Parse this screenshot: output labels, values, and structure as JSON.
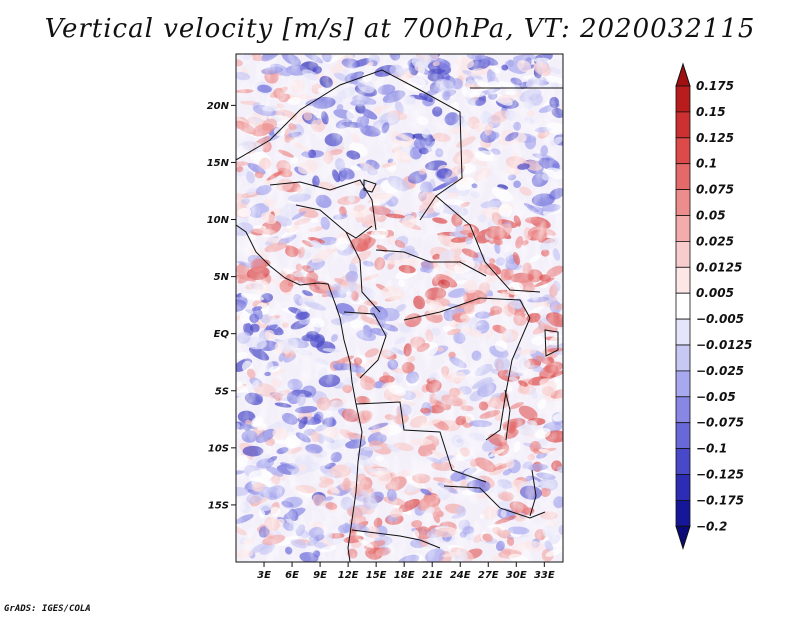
{
  "title": "Vertical velocity [m/s] at 700hPa, VT: 2020032115",
  "credit": "GrADS: IGES/COLA",
  "map": {
    "variable": "Vertical velocity",
    "units": "m/s",
    "level": "700hPa",
    "valid_time": "2020032115",
    "lon_range": [
      0,
      35
    ],
    "lat_range": [
      -20,
      24.5
    ],
    "lat_ticks": [
      {
        "value": 20,
        "label": "20N"
      },
      {
        "value": 15,
        "label": "15N"
      },
      {
        "value": 10,
        "label": "10N"
      },
      {
        "value": 5,
        "label": "5N"
      },
      {
        "value": 0,
        "label": "EQ"
      },
      {
        "value": -5,
        "label": "5S"
      },
      {
        "value": -10,
        "label": "10S"
      },
      {
        "value": -15,
        "label": "15S"
      }
    ],
    "lon_ticks": [
      {
        "value": 3,
        "label": "3E"
      },
      {
        "value": 6,
        "label": "6E"
      },
      {
        "value": 9,
        "label": "9E"
      },
      {
        "value": 12,
        "label": "12E"
      },
      {
        "value": 15,
        "label": "15E"
      },
      {
        "value": 18,
        "label": "18E"
      },
      {
        "value": 21,
        "label": "21E"
      },
      {
        "value": 24,
        "label": "24E"
      },
      {
        "value": 27,
        "label": "27E"
      },
      {
        "value": 30,
        "label": "30E"
      },
      {
        "value": 33,
        "label": "33E"
      }
    ]
  },
  "colorbar": {
    "labels": [
      "0.175",
      "0.15",
      "0.125",
      "0.1",
      "0.075",
      "0.05",
      "0.025",
      "0.0125",
      "0.005",
      "−0.005",
      "−0.0125",
      "−0.025",
      "−0.05",
      "−0.075",
      "−0.1",
      "−0.125",
      "−0.175",
      "−0.2"
    ],
    "colors": [
      "#a01010",
      "#b81c1c",
      "#cc3030",
      "#dc4a4a",
      "#e46a6a",
      "#ec8c8c",
      "#f2acac",
      "#f8cccc",
      "#fce6e6",
      "#ffffff",
      "#e4e4fa",
      "#c8c8f4",
      "#a8a8ee",
      "#8888e4",
      "#6868d8",
      "#4848c8",
      "#2c2cb4",
      "#161698",
      "#0a0a78"
    ]
  }
}
